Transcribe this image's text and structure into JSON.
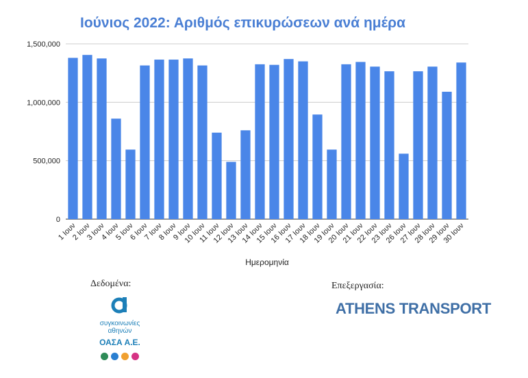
{
  "chart_data": {
    "type": "bar",
    "title": "Ιούνιος 2022: Αριθμός επικυρώσεων ανά ημέρα",
    "xlabel": "Ημερομηνία",
    "ylabel": "",
    "ylim": [
      0,
      1500000
    ],
    "yticks": [
      "0",
      "500,000",
      "1,000,000",
      "1,500,000"
    ],
    "ytick_values": [
      0,
      500000,
      1000000,
      1500000
    ],
    "grid": true,
    "bar_color": "#4a86e8",
    "categories": [
      "1 Ιουν",
      "2 Ιουν",
      "3 Ιουν",
      "4 Ιουν",
      "5 Ιουν",
      "6 Ιουν",
      "7 Ιουν",
      "8 Ιουν",
      "9 Ιουν",
      "10 Ιουν",
      "11 Ιουν",
      "12 Ιουν",
      "13 Ιουν",
      "14 Ιουν",
      "15 Ιουν",
      "16 Ιουν",
      "17 Ιουν",
      "18 Ιουν",
      "19 Ιουν",
      "20 Ιουν",
      "21 Ιουν",
      "22 Ιουν",
      "23 Ιουν",
      "26 Ιουν",
      "27 Ιουν",
      "28 Ιουν",
      "29 Ιουν",
      "30 Ιουν"
    ],
    "values": [
      1380000,
      1405000,
      1375000,
      860000,
      595000,
      1315000,
      1365000,
      1365000,
      1375000,
      1315000,
      740000,
      490000,
      760000,
      1325000,
      1320000,
      1370000,
      1350000,
      895000,
      595000,
      1325000,
      1345000,
      1305000,
      1265000,
      560000,
      1265000,
      1305000,
      1090000,
      1340000
    ]
  },
  "footer": {
    "data_label": "Δεδομένα:",
    "processing_label": "Επεξεργασία:",
    "oasa_line1": "συγκοινωνίες",
    "oasa_line2": "αθηνών",
    "oasa_name": "ΟΑΣΑ Α.Ε.",
    "athens_transport": "ATHENS TRANSPORT",
    "colors": {
      "oasa_blue": "#1c7fb8",
      "athens_blue": "#3f6fa6",
      "dot_green": "#2e8b57",
      "dot_blue": "#2a7fd1",
      "dot_orange": "#f0a030",
      "dot_pink": "#d63384"
    }
  }
}
